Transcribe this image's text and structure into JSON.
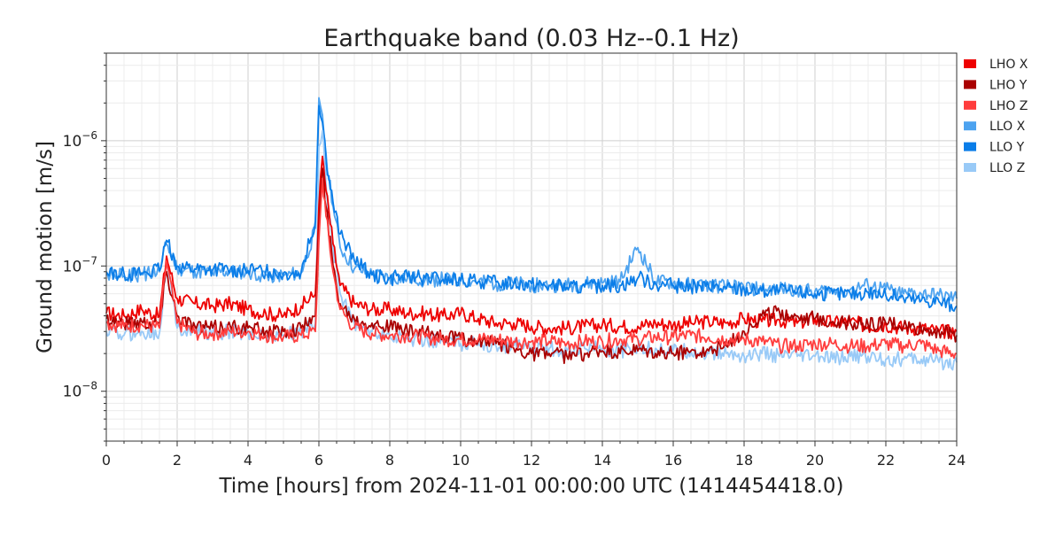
{
  "chart_data": {
    "type": "line",
    "title": "Earthquake band (0.03 Hz--0.1 Hz)",
    "xlabel": "Time [hours] from 2024-11-01 00:00:00 UTC (1414454418.0)",
    "ylabel": "Ground motion [m/s]",
    "xlim": [
      0,
      24
    ],
    "ylim": [
      4e-09,
      5e-06
    ],
    "yscale": "log",
    "grid": true,
    "legend_position": "outside-right",
    "x_ticks": [
      0,
      2,
      4,
      6,
      8,
      10,
      12,
      14,
      16,
      18,
      20,
      22,
      24
    ],
    "x_tick_labels": [
      "0",
      "2",
      "4",
      "6",
      "8",
      "10",
      "12",
      "14",
      "16",
      "18",
      "20",
      "22",
      "24"
    ],
    "y_ticks": [
      1e-08,
      1e-07,
      1e-06
    ],
    "y_tick_labels": [
      {
        "base": "10",
        "exp": "−8"
      },
      {
        "base": "10",
        "exp": "−7"
      },
      {
        "base": "10",
        "exp": "−6"
      }
    ],
    "x": [
      0,
      0.5,
      1,
      1.5,
      1.7,
      2,
      2.5,
      3,
      3.5,
      4,
      4.5,
      5,
      5.5,
      5.9,
      6,
      6.1,
      6.2,
      6.4,
      6.6,
      7,
      7.5,
      8,
      8.5,
      9,
      9.5,
      10,
      10.5,
      11,
      11.5,
      12,
      12.5,
      13,
      13.5,
      14,
      14.5,
      15,
      15.5,
      16,
      16.5,
      17,
      17.5,
      18,
      18.5,
      19,
      19.5,
      20,
      20.5,
      21,
      21.5,
      22,
      22.5,
      23,
      23.5,
      24
    ],
    "series": [
      {
        "name": "LHO X",
        "color": "#ee0000",
        "values": [
          4.2e-08,
          4e-08,
          4.5e-08,
          4e-08,
          1.2e-07,
          5.5e-08,
          5e-08,
          4.8e-08,
          5e-08,
          4.5e-08,
          4.2e-08,
          4e-08,
          4.8e-08,
          6e-08,
          3e-07,
          7.5e-07,
          4e-07,
          1.5e-07,
          7e-08,
          5e-08,
          4.5e-08,
          4.5e-08,
          4.2e-08,
          4.2e-08,
          4e-08,
          4.2e-08,
          3.8e-08,
          3.5e-08,
          3.5e-08,
          3.3e-08,
          3.2e-08,
          3.2e-08,
          3.3e-08,
          3.4e-08,
          3.3e-08,
          3.3e-08,
          3.5e-08,
          3.4e-08,
          3.5e-08,
          3.6e-08,
          3.5e-08,
          3.8e-08,
          3.6e-08,
          3.7e-08,
          3.5e-08,
          3.8e-08,
          3.5e-08,
          3.6e-08,
          3.3e-08,
          3.4e-08,
          3.2e-08,
          3.2e-08,
          3e-08,
          3e-08
        ]
      },
      {
        "name": "LHO Y",
        "color": "#aa0000",
        "values": [
          3.8e-08,
          3.5e-08,
          3.6e-08,
          3.5e-08,
          9e-08,
          4e-08,
          3.3e-08,
          3.2e-08,
          3.3e-08,
          3.2e-08,
          3e-08,
          3e-08,
          3.2e-08,
          4e-08,
          2e-07,
          6e-07,
          3e-07,
          1e-07,
          5e-08,
          3.8e-08,
          3.5e-08,
          3.3e-08,
          3e-08,
          2.9e-08,
          2.8e-08,
          2.6e-08,
          2.5e-08,
          2.4e-08,
          2.2e-08,
          2e-08,
          2e-08,
          1.9e-08,
          2e-08,
          2.1e-08,
          2e-08,
          2.1e-08,
          2e-08,
          2e-08,
          2.1e-08,
          2.1e-08,
          2.3e-08,
          3e-08,
          4e-08,
          4.3e-08,
          4e-08,
          3.8e-08,
          3.6e-08,
          3.5e-08,
          3.4e-08,
          3.5e-08,
          3.3e-08,
          3.1e-08,
          3e-08,
          2.8e-08
        ]
      },
      {
        "name": "LHO Z",
        "color": "#ff3d3d",
        "values": [
          3.5e-08,
          3.3e-08,
          3.4e-08,
          3.2e-08,
          1.1e-07,
          3.5e-08,
          2.9e-08,
          2.9e-08,
          3e-08,
          3e-08,
          2.8e-08,
          2.7e-08,
          2.8e-08,
          3e-08,
          1.6e-07,
          5e-07,
          2.5e-07,
          9e-08,
          4.5e-08,
          3.2e-08,
          2.9e-08,
          2.8e-08,
          2.8e-08,
          2.7e-08,
          2.6e-08,
          2.6e-08,
          2.6e-08,
          2.6e-08,
          2.5e-08,
          2.5e-08,
          2.5e-08,
          2.4e-08,
          2.5e-08,
          2.5e-08,
          2.6e-08,
          2.6e-08,
          2.7e-08,
          2.7e-08,
          2.8e-08,
          2.7e-08,
          2.6e-08,
          2.6e-08,
          2.5e-08,
          2.3e-08,
          2.3e-08,
          2.4e-08,
          2.4e-08,
          2.3e-08,
          2.3e-08,
          2.4e-08,
          2.3e-08,
          2.4e-08,
          2.1e-08,
          2e-08
        ]
      },
      {
        "name": "LLO X",
        "color": "#4da3f0",
        "values": [
          8.5e-08,
          8.3e-08,
          8.6e-08,
          9e-08,
          1.5e-07,
          9.5e-08,
          9e-08,
          8.8e-08,
          9e-08,
          8.8e-08,
          8.5e-08,
          8.3e-08,
          8.8e-08,
          2e-07,
          2.2e-06,
          1.6e-06,
          8e-07,
          3e-07,
          1.4e-07,
          9.5e-08,
          8.5e-08,
          8e-08,
          8e-08,
          7.8e-08,
          7.8e-08,
          7.7e-08,
          7.5e-08,
          7.2e-08,
          7.2e-08,
          7e-08,
          7e-08,
          7e-08,
          7.2e-08,
          7.3e-08,
          7.5e-08,
          1.4e-07,
          7.5e-08,
          7.3e-08,
          7e-08,
          7e-08,
          6.8e-08,
          6.8e-08,
          6.5e-08,
          6.5e-08,
          6.5e-08,
          6.3e-08,
          6.3e-08,
          6.5e-08,
          7e-08,
          6.5e-08,
          6e-08,
          6e-08,
          5.8e-08,
          5.5e-08
        ]
      },
      {
        "name": "LLO Y",
        "color": "#0a7de8",
        "values": [
          9e-08,
          8.7e-08,
          8.8e-08,
          9.2e-08,
          1.6e-07,
          1e-07,
          9.5e-08,
          9.3e-08,
          9.4e-08,
          9.2e-08,
          9e-08,
          8.8e-08,
          9e-08,
          2.3e-07,
          1.9e-06,
          1.4e-06,
          7e-07,
          3.2e-07,
          1.8e-07,
          1.1e-07,
          8.5e-08,
          8e-08,
          8.2e-08,
          8e-08,
          7.8e-08,
          7.6e-08,
          7.5e-08,
          7.4e-08,
          7.3e-08,
          7.2e-08,
          7e-08,
          6.8e-08,
          6.8e-08,
          7e-08,
          7e-08,
          8e-08,
          7.2e-08,
          7e-08,
          6.8e-08,
          6.8e-08,
          6.6e-08,
          6.5e-08,
          6.3e-08,
          6.3e-08,
          6.2e-08,
          6e-08,
          6e-08,
          6e-08,
          6.2e-08,
          5.8e-08,
          5.5e-08,
          5.3e-08,
          5.2e-08,
          4.8e-08
        ]
      },
      {
        "name": "LLO Z",
        "color": "#99caf7",
        "values": [
          3e-08,
          2.8e-08,
          3e-08,
          2.9e-08,
          1.1e-07,
          3.2e-08,
          3e-08,
          2.9e-08,
          3e-08,
          2.9e-08,
          2.8e-08,
          2.8e-08,
          3e-08,
          3.5e-08,
          9e-07,
          1.2e-06,
          4.5e-07,
          1.4e-07,
          6e-08,
          3.5e-08,
          3e-08,
          2.8e-08,
          2.6e-08,
          2.6e-08,
          2.5e-08,
          2.4e-08,
          2.4e-08,
          2.3e-08,
          2.3e-08,
          2.2e-08,
          2.2e-08,
          2.1e-08,
          2.2e-08,
          2.2e-08,
          2.1e-08,
          2.2e-08,
          2.2e-08,
          2.1e-08,
          2.1e-08,
          2e-08,
          2e-08,
          1.9e-08,
          2e-08,
          1.9e-08,
          1.9e-08,
          1.9e-08,
          1.8e-08,
          1.9e-08,
          1.9e-08,
          1.8e-08,
          1.8e-08,
          1.8e-08,
          1.7e-08,
          1.7e-08
        ]
      }
    ]
  }
}
